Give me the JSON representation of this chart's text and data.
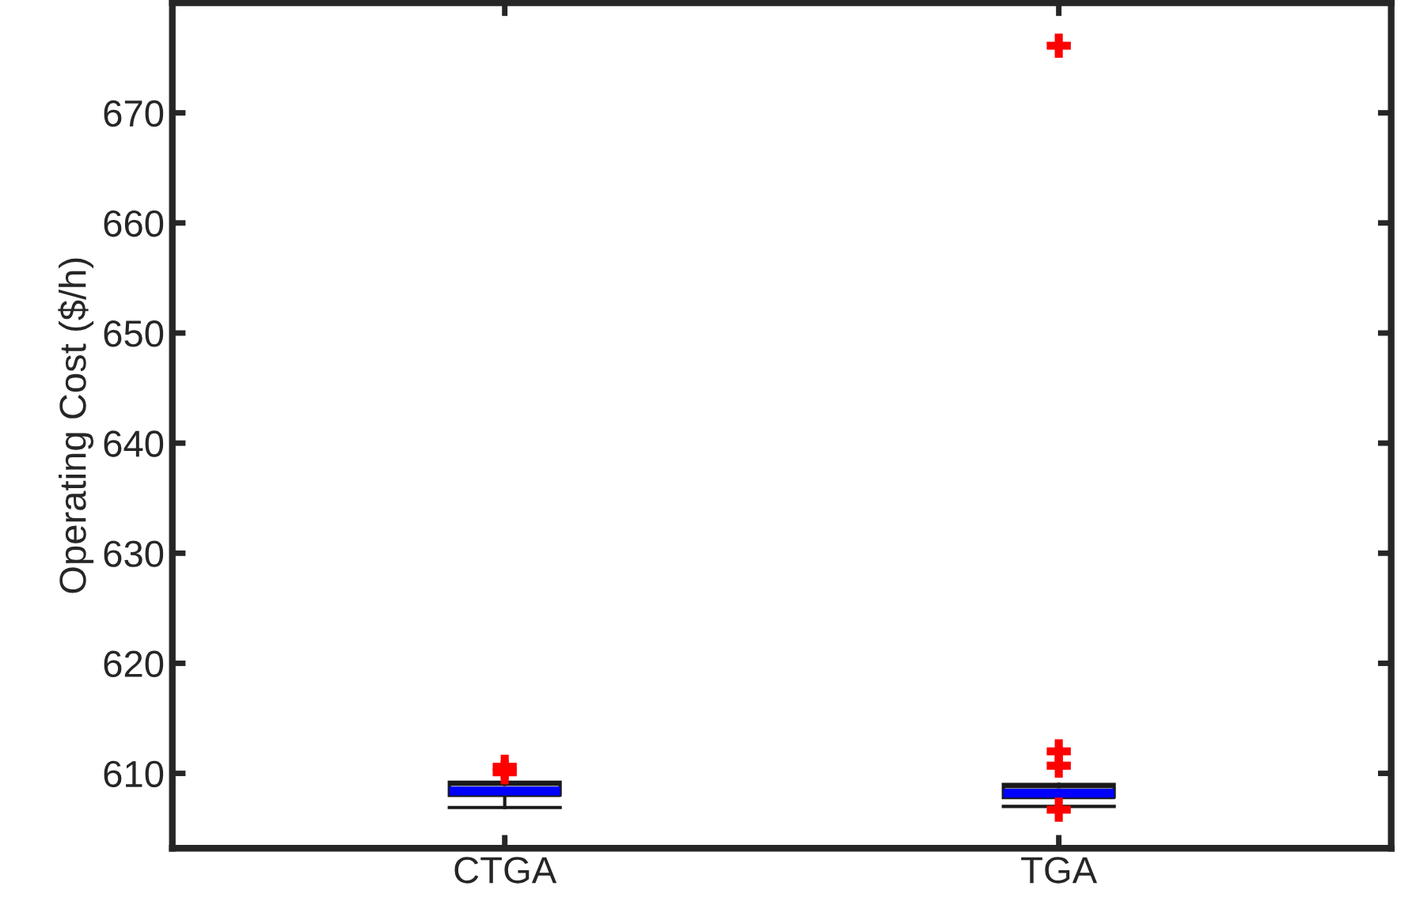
{
  "chart_data": {
    "type": "box",
    "ylabel": "Operating Cost ($/h)",
    "categories": [
      "CTGA",
      "TGA"
    ],
    "boxes": [
      {
        "low": 606.9,
        "q1": 608.0,
        "median": 608.4,
        "q3": 609.0,
        "high": 609.2,
        "outliers": [
          610.6,
          610.1
        ]
      },
      {
        "low": 607.0,
        "q1": 607.8,
        "median": 608.2,
        "q3": 608.8,
        "high": 609.0,
        "outliers": [
          676.1,
          612.0,
          610.7,
          606.7
        ]
      }
    ],
    "color": "#1a1a1a",
    "ylim": [
      603.2,
      680
    ],
    "yticks": [
      610,
      620,
      630,
      640,
      650,
      660,
      670
    ],
    "grid": false
  }
}
